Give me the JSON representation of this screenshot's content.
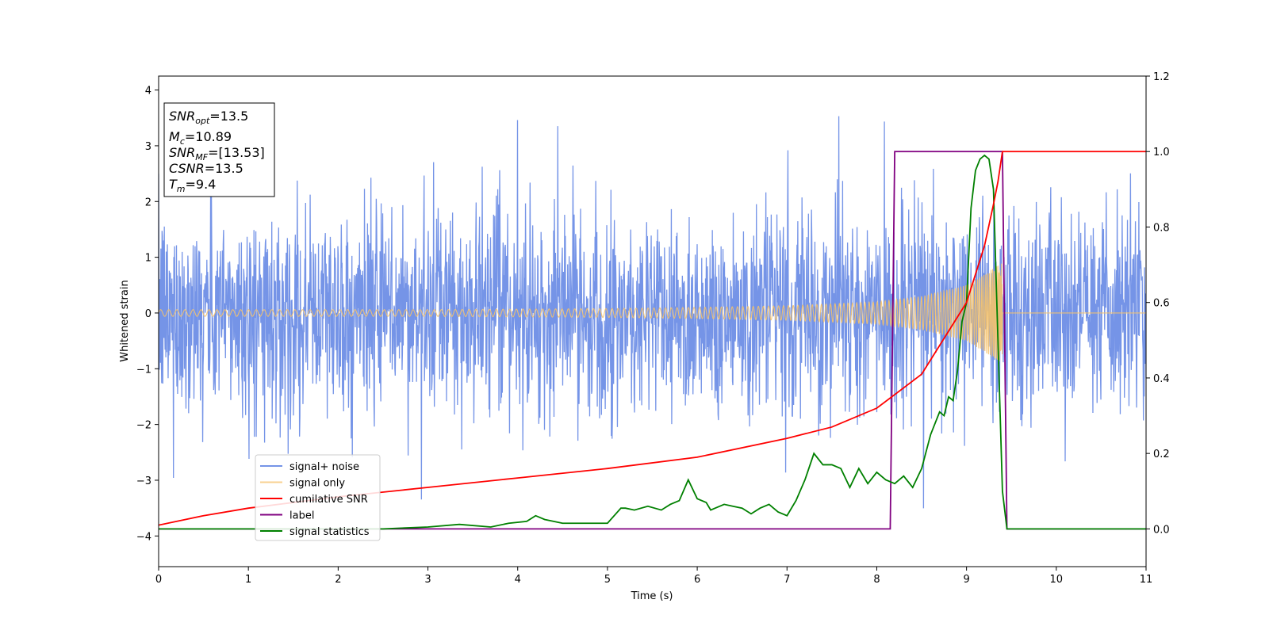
{
  "chart_data": {
    "type": "line",
    "xlabel": "Time (s)",
    "ylabel": "Whitened strain",
    "xlim": [
      0,
      11
    ],
    "ylim_left": [
      -4.55,
      4.25
    ],
    "ylim_right": [
      -0.1,
      1.2
    ],
    "x_ticks": [
      0,
      1,
      2,
      3,
      4,
      5,
      6,
      7,
      8,
      9,
      10,
      11
    ],
    "y_ticks_left": [
      -4,
      -3,
      -2,
      -1,
      0,
      1,
      2,
      3,
      4
    ],
    "y_ticks_left_labels": [
      "−4",
      "−3",
      "−2",
      "−1",
      "0",
      "1",
      "2",
      "3",
      "4"
    ],
    "y_ticks_right": [
      0.0,
      0.2,
      0.4,
      0.6,
      0.8,
      1.0,
      1.2
    ],
    "y_ticks_right_labels": [
      "0.0",
      "0.2",
      "0.4",
      "0.6",
      "0.8",
      "1.0",
      "1.2"
    ],
    "legend_placement": "lower-left",
    "annotation": {
      "lines": [
        {
          "sym": "SNR",
          "sub": "opt",
          "value": "=13.5"
        },
        {
          "sym": "M",
          "sub": "c",
          "value": "=10.89"
        },
        {
          "sym": "SNR",
          "sub": "MF",
          "value": "=[13.53]"
        },
        {
          "sym": "CSNR",
          "sub": "",
          "value": "=13.5"
        },
        {
          "sym": "T",
          "sub": "m",
          "value": "=9.4"
        }
      ]
    },
    "series": [
      {
        "name": "signal+ noise",
        "color": "#6e8ee6",
        "axis": "left",
        "description_stat": {
          "std": 0.9,
          "x_range": [
            0,
            11
          ]
        }
      },
      {
        "name": "signal only",
        "color": "#f5c26b",
        "axis": "left",
        "envelope": {
          "x": [
            0,
            3,
            5,
            6,
            7,
            8,
            8.5,
            9,
            9.2,
            9.4
          ],
          "amp": [
            0.06,
            0.06,
            0.08,
            0.1,
            0.13,
            0.2,
            0.3,
            0.5,
            0.7,
            0.9
          ]
        },
        "merger_time": 9.4
      },
      {
        "name": "cumilative SNR",
        "color": "#ff0000",
        "axis": "right",
        "x": [
          0,
          0.5,
          1,
          2,
          3,
          4,
          5,
          6,
          7,
          7.5,
          8,
          8.5,
          9,
          9.2,
          9.3,
          9.35,
          9.4,
          11
        ],
        "y": [
          0.01,
          0.035,
          0.055,
          0.085,
          0.11,
          0.135,
          0.16,
          0.19,
          0.24,
          0.27,
          0.32,
          0.41,
          0.6,
          0.75,
          0.86,
          0.92,
          1.0,
          1.0
        ]
      },
      {
        "name": "label",
        "color": "#800080",
        "axis": "right",
        "x": [
          0,
          8.15,
          8.2,
          9.4,
          9.45,
          11
        ],
        "y": [
          0,
          0,
          1,
          1,
          0,
          0
        ]
      },
      {
        "name": "signal statistics",
        "color": "#008000",
        "axis": "right",
        "x": [
          0,
          2.5,
          3.0,
          3.35,
          3.7,
          3.9,
          4.1,
          4.2,
          4.3,
          4.5,
          4.8,
          5.0,
          5.15,
          5.2,
          5.3,
          5.45,
          5.6,
          5.7,
          5.8,
          5.9,
          6.0,
          6.1,
          6.15,
          6.2,
          6.3,
          6.4,
          6.5,
          6.6,
          6.7,
          6.8,
          6.9,
          7.0,
          7.1,
          7.2,
          7.3,
          7.4,
          7.5,
          7.6,
          7.7,
          7.8,
          7.9,
          8.0,
          8.1,
          8.2,
          8.3,
          8.4,
          8.5,
          8.6,
          8.7,
          8.75,
          8.8,
          8.85,
          8.9,
          8.95,
          9.0,
          9.05,
          9.1,
          9.15,
          9.2,
          9.25,
          9.3,
          9.35,
          9.4,
          9.45,
          11
        ],
        "y": [
          0,
          0,
          0.005,
          0.012,
          0.005,
          0.015,
          0.02,
          0.035,
          0.025,
          0.015,
          0.015,
          0.015,
          0.055,
          0.055,
          0.05,
          0.06,
          0.05,
          0.065,
          0.075,
          0.13,
          0.08,
          0.07,
          0.05,
          0.055,
          0.065,
          0.06,
          0.055,
          0.04,
          0.055,
          0.065,
          0.045,
          0.035,
          0.075,
          0.13,
          0.2,
          0.17,
          0.17,
          0.16,
          0.11,
          0.16,
          0.12,
          0.15,
          0.13,
          0.12,
          0.14,
          0.11,
          0.16,
          0.25,
          0.31,
          0.3,
          0.35,
          0.34,
          0.42,
          0.55,
          0.6,
          0.85,
          0.95,
          0.98,
          0.99,
          0.98,
          0.9,
          0.5,
          0.1,
          0.0,
          0.0
        ]
      }
    ]
  }
}
